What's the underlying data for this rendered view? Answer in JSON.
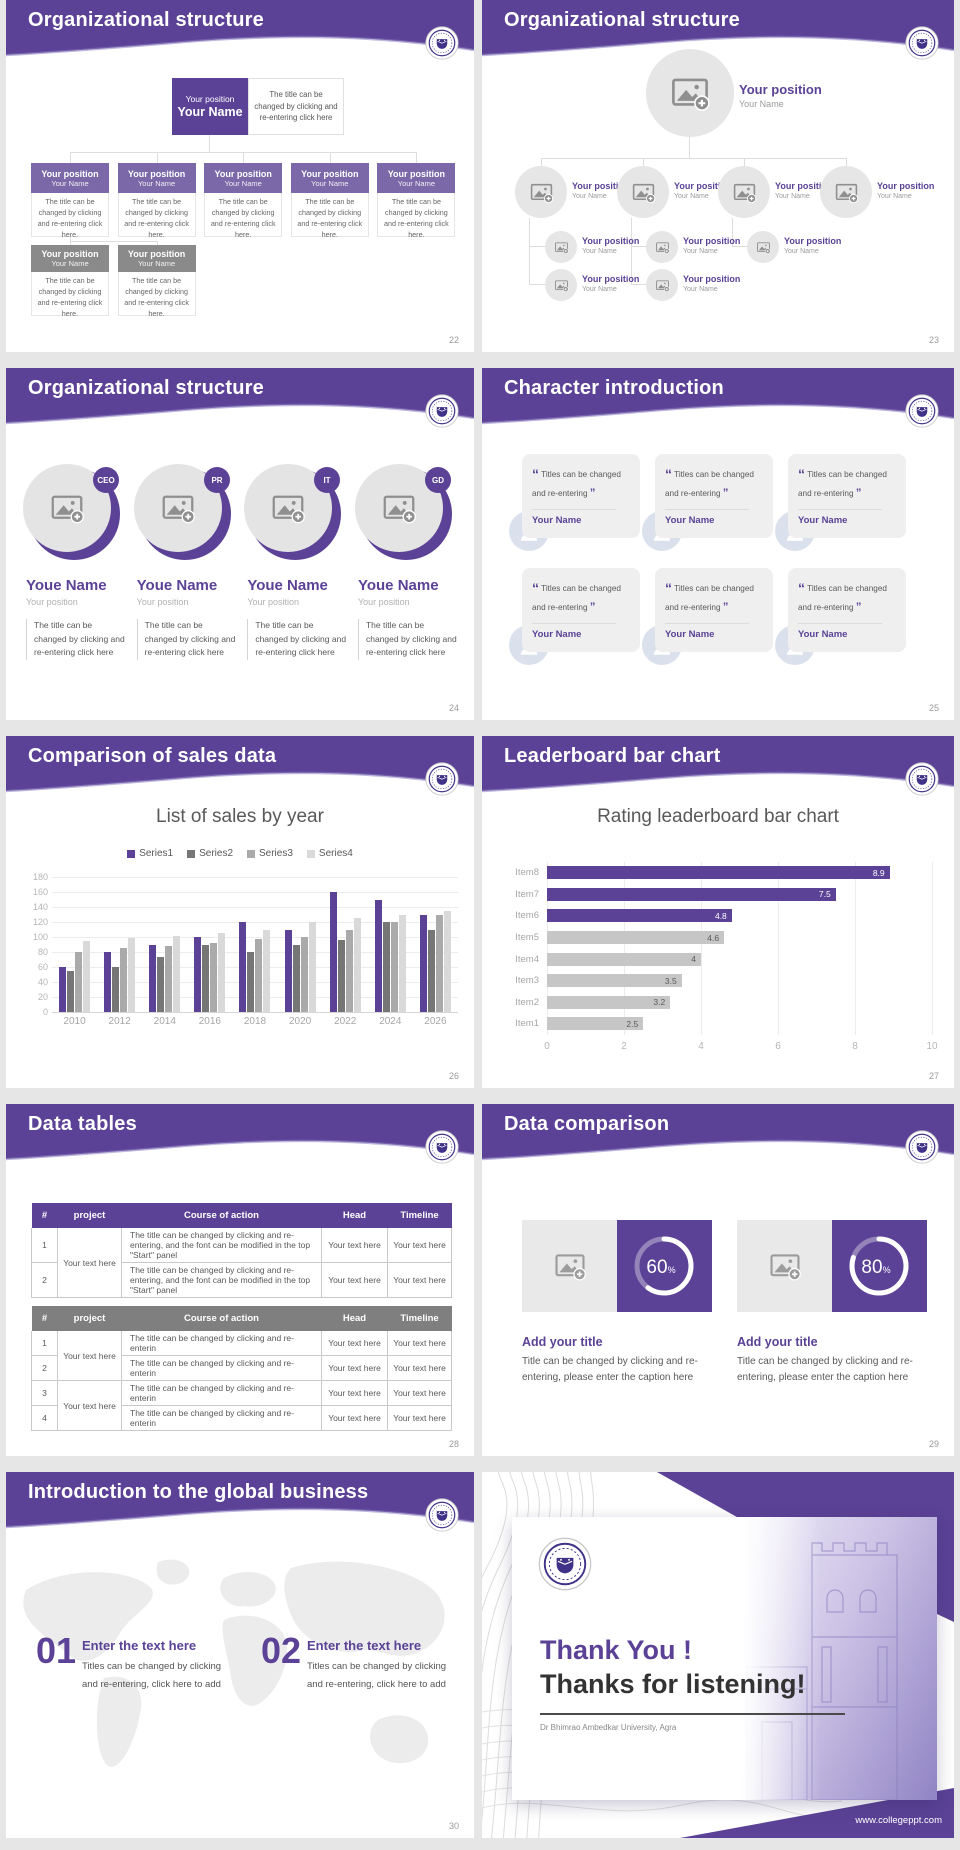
{
  "theme": {
    "purple": "#5b4296",
    "purple_mid": "#7a68a8",
    "purple_dark": "#3f3287",
    "gray_box": "#8a8a8a",
    "page_bg": "#e6e6e6",
    "text_gray": "#595959",
    "light_gray": "#a6a6a6",
    "bar_gray": "#c6c6c6"
  },
  "slides": {
    "s22": {
      "title": "Organizational structure",
      "page": "22",
      "root": {
        "position": "Your position",
        "name": "Your Name"
      },
      "root_caption": "The title can be changed by clicking and re-entering click here",
      "child_caption": "The title can be changed by clicking and re-entering click here.",
      "children": [
        {
          "position": "Your position",
          "name": "Your Name"
        },
        {
          "position": "Your position",
          "name": "Your Name"
        },
        {
          "position": "Your position",
          "name": "Your Name"
        },
        {
          "position": "Your position",
          "name": "Your Name"
        },
        {
          "position": "Your position",
          "name": "Your Name"
        }
      ],
      "sub_children": [
        {
          "position": "Your position",
          "name": "Your Name"
        },
        {
          "position": "Your position",
          "name": "Your Name"
        }
      ]
    },
    "s23": {
      "title": "Organizational structure",
      "page": "23",
      "root": {
        "position": "Your position",
        "name": "Your Name"
      },
      "level2": [
        {
          "position": "Your position",
          "name": "Your Name"
        },
        {
          "position": "Your position",
          "name": "Your Name"
        },
        {
          "position": "Your position",
          "name": "Your Name"
        },
        {
          "position": "Your position",
          "name": "Your Name"
        }
      ],
      "level3": [
        {
          "position": "Your position",
          "name": "Your Name"
        },
        {
          "position": "Your position",
          "name": "Your Name"
        },
        {
          "position": "Your position",
          "name": "Your Name"
        }
      ],
      "level4": [
        {
          "position": "Your position",
          "name": "Your Name"
        },
        {
          "position": "Your position",
          "name": "Your Name"
        }
      ]
    },
    "s24": {
      "title": "Organizational structure",
      "page": "24",
      "caption": "The title can be changed by clicking and re-entering click here",
      "members": [
        {
          "badge": "CEO",
          "name": "Youe Name",
          "position": "Your position"
        },
        {
          "badge": "PR",
          "name": "Youe Name",
          "position": "Your position"
        },
        {
          "badge": "IT",
          "name": "Youe Name",
          "position": "Your position"
        },
        {
          "badge": "GD",
          "name": "Youe Name",
          "position": "Your position"
        }
      ]
    },
    "s25": {
      "title": "Character introduction",
      "page": "25",
      "quote_open": "“",
      "quote_close": "”",
      "cards": [
        {
          "quote": "Titles can be changed and re-entering",
          "name": "Your Name"
        },
        {
          "quote": "Titles can be changed and re-entering",
          "name": "Your Name"
        },
        {
          "quote": "Titles can be changed and re-entering",
          "name": "Your Name"
        },
        {
          "quote": "Titles can be changed and re-entering",
          "name": "Your Name"
        },
        {
          "quote": "Titles can be changed and re-entering",
          "name": "Your Name"
        },
        {
          "quote": "Titles can be changed and re-entering",
          "name": "Your Name"
        }
      ]
    },
    "s26": {
      "title": "Comparison of sales data",
      "page": "26"
    },
    "s27": {
      "title": "Leaderboard bar chart",
      "page": "27"
    },
    "s28": {
      "title": "Data tables",
      "page": "28",
      "headers": [
        "#",
        "project",
        "Course of action",
        "Head",
        "Timeline"
      ],
      "table1": {
        "project": "Your text here",
        "rows": [
          {
            "num": "1",
            "course": "The title can be changed by clicking and re-entering, and the font can be modified in the top \"Start\" panel",
            "head": "Your text here",
            "timeline": "Your text here"
          },
          {
            "num": "2",
            "course": "The title can be changed by clicking and re-entering, and the font can be modified in the top \"Start\" panel",
            "head": "Your text here",
            "timeline": "Your text here"
          }
        ]
      },
      "table2": {
        "projects": [
          "Your text here",
          "Your text here"
        ],
        "rows": [
          {
            "num": "1",
            "course": "The title can be changed by clicking and re-enterin",
            "head": "Your text here",
            "timeline": "Your text here"
          },
          {
            "num": "2",
            "course": "The title can be changed by clicking and re-enterin",
            "head": "Your text here",
            "timeline": "Your text here"
          },
          {
            "num": "3",
            "course": "The title can be changed by clicking and re-enterin",
            "head": "Your text here",
            "timeline": "Your text here"
          },
          {
            "num": "4",
            "course": "The title can be changed by clicking and re-enterin",
            "head": "Your text here",
            "timeline": "Your text here"
          }
        ]
      }
    },
    "s29": {
      "title": "Data comparison",
      "page": "29",
      "cards": [
        {
          "percent": "60",
          "suffix": "%",
          "title": "Add your title",
          "caption": "Title can be changed by clicking and re-entering, please enter the caption here"
        },
        {
          "percent": "80",
          "suffix": "%",
          "title": "Add your title",
          "caption": "Title can be changed by clicking and re-entering, please enter the caption here"
        }
      ]
    },
    "s30": {
      "title": "Introduction to the global business",
      "page": "30",
      "items": [
        {
          "number": "01",
          "heading": "Enter the text here",
          "caption": "Titles can be changed by clicking and re-entering, click here to add"
        },
        {
          "number": "02",
          "heading": "Enter the text here",
          "caption": "Titles can be changed by clicking and re-entering, click here to add"
        }
      ]
    },
    "thanks": {
      "line1": "Thank You !",
      "line2": "Thanks for listening!",
      "subtitle": "Dr Bhimrao Ambedkar University, Agra",
      "footer_url": "www.collegeppt.com"
    }
  },
  "chart_data": [
    {
      "type": "bar",
      "slide": "s26",
      "title": "List of sales by year",
      "categories": [
        "2010",
        "2012",
        "2014",
        "2016",
        "2018",
        "2020",
        "2022",
        "2024",
        "2026"
      ],
      "series": [
        {
          "name": "Series1",
          "color": "#5b4296",
          "values": [
            60,
            80,
            90,
            100,
            120,
            110,
            160,
            150,
            130
          ]
        },
        {
          "name": "Series2",
          "color": "#767676",
          "values": [
            55,
            60,
            74,
            90,
            80,
            90,
            96,
            120,
            110
          ]
        },
        {
          "name": "Series3",
          "color": "#aaaaaa",
          "values": [
            80,
            86,
            88,
            92,
            98,
            100,
            110,
            120,
            130
          ]
        },
        {
          "name": "Series4",
          "color": "#d9d9d9",
          "values": [
            95,
            99,
            102,
            105,
            110,
            120,
            126,
            130,
            135
          ]
        }
      ],
      "ylim": [
        0,
        180
      ],
      "yticks": [
        0,
        20,
        40,
        60,
        80,
        100,
        120,
        140,
        160,
        180
      ],
      "legend_position": "top",
      "grid": true
    },
    {
      "type": "bar",
      "orientation": "horizontal",
      "slide": "s27",
      "title": "Rating leaderboard bar chart",
      "categories": [
        "Item8",
        "Item7",
        "Item6",
        "Item5",
        "Item4",
        "Item3",
        "Item2",
        "Item1"
      ],
      "values": [
        8.9,
        7.5,
        4.8,
        4.6,
        4,
        3.5,
        3.2,
        2.5
      ],
      "value_labels": [
        "8.9",
        "7.5",
        "4.8",
        "4.6",
        "4",
        "3.5",
        "3.2",
        "2.5"
      ],
      "bar_colors": [
        "#5b4296",
        "#5b4296",
        "#5b4296",
        "#c6c6c6",
        "#c6c6c6",
        "#c6c6c6",
        "#c6c6c6",
        "#c6c6c6"
      ],
      "xlim": [
        0,
        10
      ],
      "xticks": [
        0,
        2,
        4,
        6,
        8,
        10
      ],
      "grid": true
    }
  ]
}
